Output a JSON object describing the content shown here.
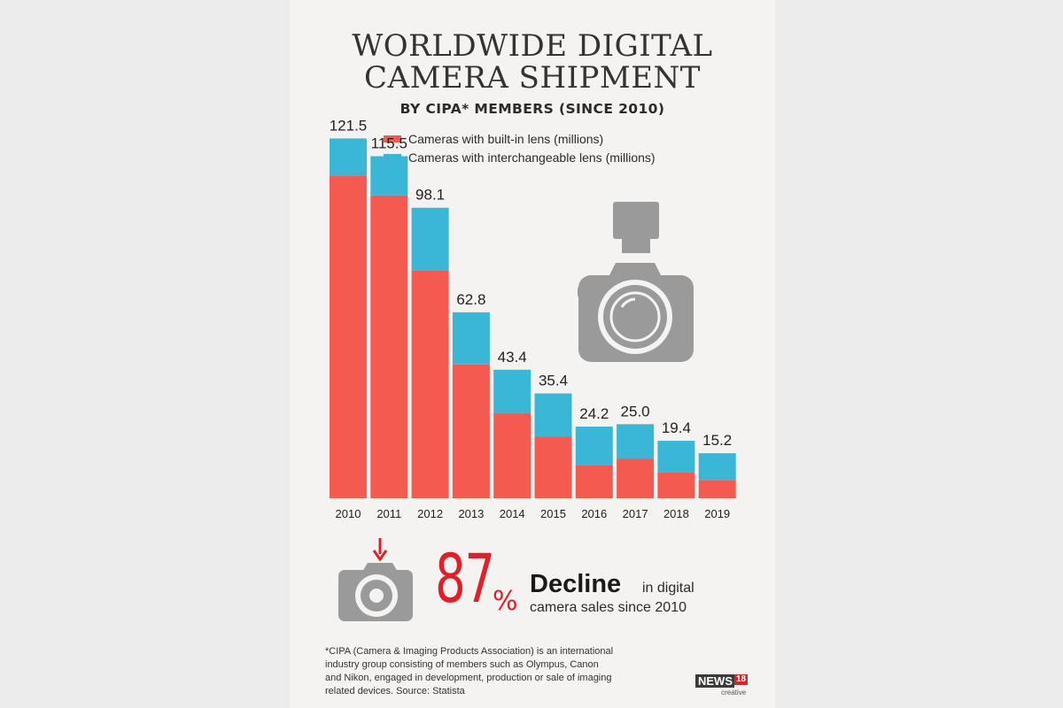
{
  "title": {
    "line1": "WORLDWIDE DIGITAL",
    "line2": "CAMERA SHIPMENT",
    "subtitle": "BY CIPA* MEMBERS (SINCE 2010)"
  },
  "legend": [
    {
      "label": "Cameras with built-in lens (millions)",
      "color": "#f55a50"
    },
    {
      "label": "Cameras with interchangeable lens (millions)",
      "color": "#3ab6d6"
    }
  ],
  "chart_data": {
    "type": "bar",
    "stacked": true,
    "categories": [
      "2010",
      "2011",
      "2012",
      "2013",
      "2014",
      "2015",
      "2016",
      "2017",
      "2018",
      "2019"
    ],
    "series": [
      {
        "name": "Cameras with built-in lens (millions)",
        "color": "#f55a50",
        "values": [
          109.0,
          102.3,
          77.0,
          45.2,
          28.8,
          20.9,
          11.3,
          13.3,
          8.7,
          6.2
        ]
      },
      {
        "name": "Cameras with interchangeable lens (millions)",
        "color": "#3ab6d6",
        "values": [
          12.5,
          13.2,
          21.1,
          17.6,
          14.6,
          14.5,
          12.9,
          11.7,
          10.7,
          9.0
        ]
      }
    ],
    "totals": [
      "121.5",
      "115.5",
      "98.1",
      "62.8",
      "43.4",
      "35.4",
      "24.2",
      "25.0",
      "19.4",
      "15.2"
    ],
    "ylim": [
      0,
      130
    ],
    "grid": false,
    "legend_position": "top"
  },
  "decline": {
    "percent": "87",
    "percent_sign": "%",
    "word": "Decline",
    "rest": "in digital",
    "line2": "camera sales since 2010"
  },
  "icons": {
    "large": "camera-with-flash-icon",
    "small": "camera-down-arrow-icon"
  },
  "footnote": {
    "lines": [
      "*CIPA (Camera & Imaging Products Association) is an international",
      "industry group consisting of members such as Olympus, Canon",
      "and Nikon, engaged in development, production or sale of imaging",
      "related devices.  Source: Statista"
    ]
  },
  "logo": {
    "brand": "NEWS",
    "number": "18",
    "tagline": "creative"
  }
}
